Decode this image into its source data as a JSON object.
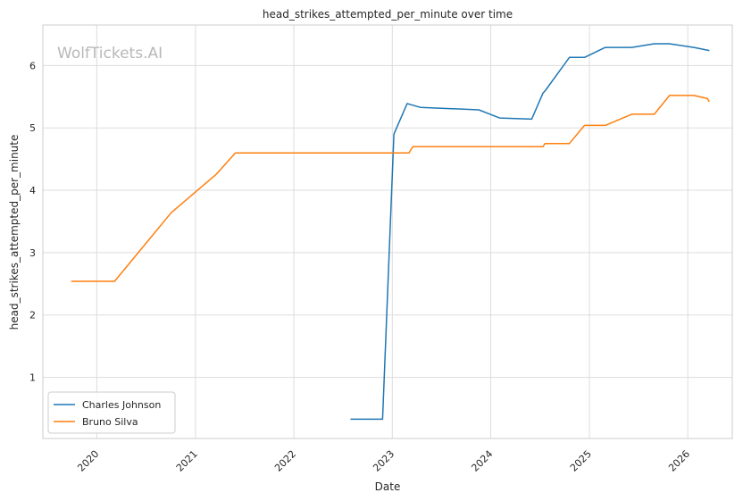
{
  "chart_data": {
    "type": "line",
    "title": "head_strikes_attempted_per_minute over time",
    "xlabel": "Date",
    "ylabel": "head_strikes_attempted_per_minute",
    "watermark": "WolfTickets.AI",
    "xlim": [
      "2019-06-15",
      "2026-06-15"
    ],
    "ylim": [
      0.02,
      6.65
    ],
    "x_ticks": [
      "2020",
      "2021",
      "2022",
      "2023",
      "2024",
      "2025",
      "2026"
    ],
    "y_ticks": [
      1,
      2,
      3,
      4,
      5,
      6
    ],
    "grid": true,
    "legend_position": "lower-left",
    "series": [
      {
        "name": "Charles Johnson",
        "color": "#1f77b4",
        "points": [
          [
            "2022-07-30",
            0.33
          ],
          [
            "2022-11-26",
            0.33
          ],
          [
            "2023-01-07",
            4.9
          ],
          [
            "2023-02-25",
            5.39
          ],
          [
            "2023-03-05",
            5.38
          ],
          [
            "2023-04-15",
            5.33
          ],
          [
            "2023-11-18",
            5.29
          ],
          [
            "2024-02-03",
            5.16
          ],
          [
            "2024-06-01",
            5.14
          ],
          [
            "2024-07-13",
            5.56
          ],
          [
            "2024-07-20",
            5.59
          ],
          [
            "2024-10-19",
            6.13
          ],
          [
            "2024-12-14",
            6.13
          ],
          [
            "2025-03-01",
            6.29
          ],
          [
            "2025-06-07",
            6.29
          ],
          [
            "2025-08-30",
            6.35
          ],
          [
            "2025-10-25",
            6.35
          ],
          [
            "2026-01-24",
            6.29
          ],
          [
            "2026-03-22",
            6.24
          ]
        ]
      },
      {
        "name": "Bruno Silva",
        "color": "#ff7f0e",
        "points": [
          [
            "2019-09-28",
            2.54
          ],
          [
            "2020-03-07",
            2.54
          ],
          [
            "2020-10-03",
            3.64
          ],
          [
            "2021-03-20",
            4.26
          ],
          [
            "2021-05-29",
            4.6
          ],
          [
            "2023-03-04",
            4.6
          ],
          [
            "2023-03-18",
            4.7
          ],
          [
            "2024-07-13",
            4.7
          ],
          [
            "2024-07-20",
            4.75
          ],
          [
            "2024-10-19",
            4.75
          ],
          [
            "2024-12-14",
            5.04
          ],
          [
            "2025-03-01",
            5.04
          ],
          [
            "2025-06-07",
            5.22
          ],
          [
            "2025-08-30",
            5.22
          ],
          [
            "2025-10-25",
            5.52
          ],
          [
            "2026-01-24",
            5.52
          ],
          [
            "2026-03-15",
            5.47
          ],
          [
            "2026-03-22",
            5.42
          ]
        ]
      }
    ]
  }
}
